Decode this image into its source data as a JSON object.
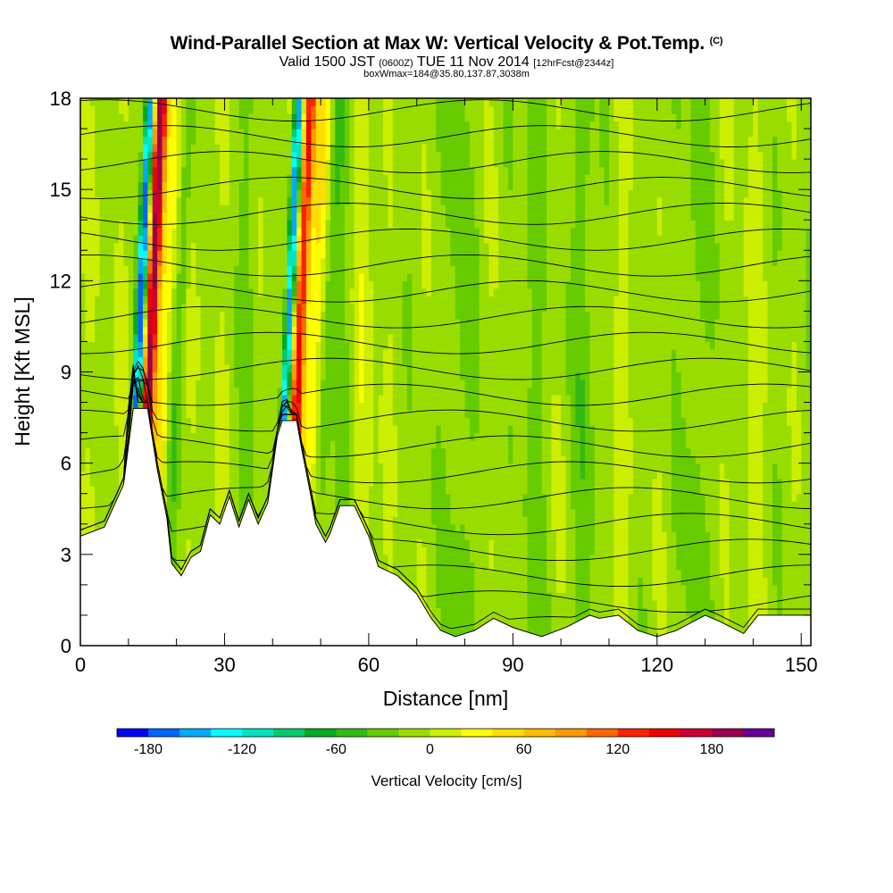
{
  "title": {
    "main": "Wind-Parallel Section at Max W: Vertical Velocity & Pot.Temp.",
    "mark": "(C)",
    "valid_prefix": "Valid 1500 JST",
    "valid_z": "(0600Z)",
    "valid_date": "TUE 11 Nov 2014",
    "forecast": "[12hrFcst@2344z]",
    "box": "boxWmax=184@35.80,137.87,3038m"
  },
  "chart_data": {
    "type": "heatmap",
    "xlabel": "Distance [nm]",
    "ylabel": "Height [Kft MSL]",
    "xlim": [
      0,
      152
    ],
    "ylim": [
      0,
      18
    ],
    "xticks": [
      0,
      30,
      60,
      90,
      120,
      150
    ],
    "yticks": [
      0,
      3,
      6,
      9,
      12,
      15,
      18
    ],
    "colorbar": {
      "label": "Vertical Velocity [cm/s]",
      "range": [
        -200,
        220
      ],
      "step": 20,
      "tick_values": [
        -180,
        -120,
        -60,
        0,
        60,
        120,
        180
      ],
      "tick_labels": [
        "-180",
        "-120",
        "-60",
        "0",
        "60",
        "120",
        "180"
      ],
      "colors": [
        "#0000ff",
        "#0066ff",
        "#00aaff",
        "#00ffff",
        "#00e5c0",
        "#00cc66",
        "#00aa22",
        "#33bb11",
        "#66cc00",
        "#99dd00",
        "#ccee00",
        "#ffff00",
        "#ffdd00",
        "#ffbb00",
        "#ff9900",
        "#ff6600",
        "#ff2200",
        "#ee0000",
        "#cc0033",
        "#99004d",
        "#660099"
      ]
    },
    "terrain_kft": [
      [
        0,
        3.6
      ],
      [
        5,
        3.9
      ],
      [
        9,
        5.3
      ],
      [
        11,
        7.8
      ],
      [
        14,
        7.8
      ],
      [
        16,
        5.8
      ],
      [
        18,
        4.2
      ],
      [
        19,
        2.7
      ],
      [
        21,
        2.3
      ],
      [
        23,
        2.9
      ],
      [
        25,
        3.1
      ],
      [
        27,
        4.3
      ],
      [
        29,
        4.0
      ],
      [
        31,
        4.9
      ],
      [
        33,
        3.9
      ],
      [
        35,
        4.8
      ],
      [
        37,
        4.0
      ],
      [
        39,
        4.7
      ],
      [
        41,
        6.9
      ],
      [
        42,
        7.4
      ],
      [
        45,
        7.4
      ],
      [
        46,
        6.5
      ],
      [
        48,
        4.9
      ],
      [
        49,
        4.0
      ],
      [
        51,
        3.4
      ],
      [
        52,
        3.7
      ],
      [
        54,
        4.6
      ],
      [
        57,
        4.6
      ],
      [
        60,
        3.6
      ],
      [
        62,
        2.6
      ],
      [
        66,
        2.3
      ],
      [
        70,
        1.7
      ],
      [
        73,
        0.9
      ],
      [
        75,
        0.5
      ],
      [
        78,
        0.3
      ],
      [
        82,
        0.5
      ],
      [
        86,
        0.9
      ],
      [
        90,
        0.6
      ],
      [
        96,
        0.3
      ],
      [
        101,
        0.6
      ],
      [
        106,
        1.0
      ],
      [
        108,
        0.9
      ],
      [
        112,
        1.0
      ],
      [
        116,
        0.5
      ],
      [
        120,
        0.3
      ],
      [
        124,
        0.5
      ],
      [
        130,
        1.0
      ],
      [
        133,
        0.8
      ],
      [
        138,
        0.4
      ],
      [
        141,
        1.0
      ],
      [
        152,
        1.0
      ]
    ],
    "theta_isentropes_C": [
      10,
      12,
      14,
      16,
      18,
      20,
      22,
      24,
      26,
      28,
      30,
      32,
      34,
      36,
      38,
      40,
      42,
      44,
      46,
      48,
      50
    ]
  }
}
